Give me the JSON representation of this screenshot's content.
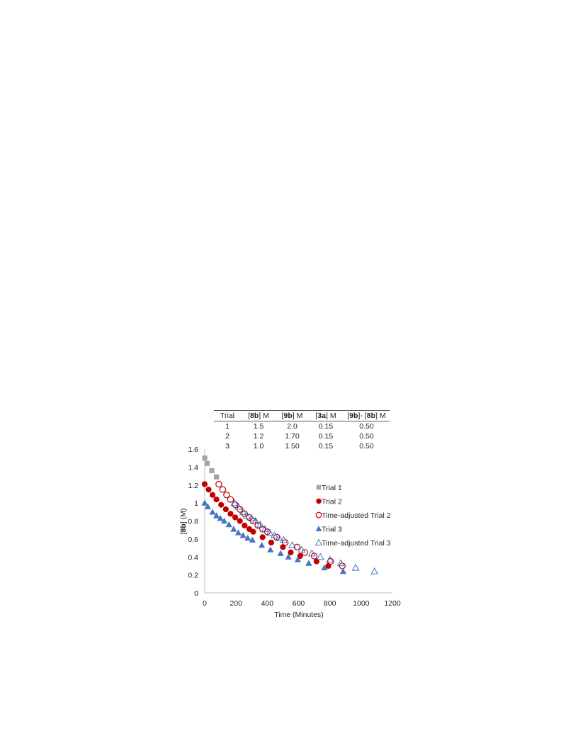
{
  "table": {
    "headers": [
      {
        "pre": "Trial",
        "bold": "",
        "post": ""
      },
      {
        "pre": "[",
        "bold": "8b",
        "post": "] M"
      },
      {
        "pre": "[",
        "bold": "9b",
        "post": "] M"
      },
      {
        "pre": "[",
        "bold": "3a",
        "post": "] M"
      },
      {
        "pre": "[",
        "bold": "9b",
        "post": "]- [",
        "bold2": "8b",
        "post2": "] M"
      }
    ],
    "rows": [
      [
        "1",
        "1.5",
        "2.0",
        "0.15",
        "0.50"
      ],
      [
        "2",
        "1.2",
        "1.70",
        "0.15",
        "0.50"
      ],
      [
        "3",
        "1.0",
        "1.50",
        "0.15",
        "0.50"
      ]
    ]
  },
  "chart_data": {
    "type": "scatter",
    "xlabel": "Time (Minutes)",
    "ylabel_pre": "[",
    "ylabel_bold": "8b",
    "ylabel_post": "] (M)",
    "xlim": [
      0,
      1200
    ],
    "ylim": [
      0,
      1.6
    ],
    "xticks": [
      0,
      200,
      400,
      600,
      800,
      1000,
      1200
    ],
    "yticks": [
      0,
      0.2,
      0.4,
      0.6,
      0.8,
      1,
      1.2,
      1.4,
      1.6
    ],
    "grid": false,
    "legend_position": "right-center",
    "series": [
      {
        "name": "Trial 1",
        "marker": "square-filled",
        "color": "#a6a6a6",
        "x": [
          0,
          15,
          45,
          75
        ],
        "y": [
          1.5,
          1.44,
          1.36,
          1.29
        ]
      },
      {
        "name": "Trial 2",
        "marker": "circle-filled",
        "color": "#c00000",
        "x": [
          0,
          25,
          50,
          75,
          105,
          135,
          165,
          195,
          225,
          255,
          285,
          310,
          370,
          425,
          500,
          550,
          610,
          715,
          790
        ],
        "y": [
          1.21,
          1.15,
          1.09,
          1.04,
          0.98,
          0.93,
          0.88,
          0.84,
          0.8,
          0.75,
          0.71,
          0.68,
          0.62,
          0.56,
          0.51,
          0.45,
          0.41,
          0.35,
          0.3
        ]
      },
      {
        "name": "Time-adjusted Trial 2",
        "marker": "circle-open",
        "color": "#c00000",
        "x": [
          90,
          115,
          140,
          165,
          195,
          225,
          255,
          285,
          310,
          340,
          370,
          400,
          460,
          515,
          590,
          640,
          700,
          805,
          880
        ],
        "y": [
          1.21,
          1.15,
          1.09,
          1.04,
          0.98,
          0.93,
          0.88,
          0.84,
          0.8,
          0.75,
          0.71,
          0.68,
          0.62,
          0.56,
          0.51,
          0.45,
          0.41,
          0.35,
          0.3
        ]
      },
      {
        "name": "Trial 3",
        "marker": "triangle-filled",
        "color": "#4472c4",
        "x": [
          0,
          20,
          50,
          75,
          100,
          125,
          155,
          185,
          215,
          245,
          275,
          305,
          365,
          420,
          485,
          535,
          595,
          665,
          765,
          885
        ],
        "y": [
          1.0,
          0.96,
          0.9,
          0.86,
          0.83,
          0.8,
          0.76,
          0.71,
          0.67,
          0.64,
          0.61,
          0.59,
          0.53,
          0.48,
          0.44,
          0.4,
          0.37,
          0.33,
          0.28,
          0.24
        ]
      },
      {
        "name": "Time-adjusted Trial 3",
        "marker": "triangle-open",
        "color": "#4472c4",
        "x": [
          190,
          215,
          245,
          270,
          300,
          325,
          355,
          385,
          415,
          445,
          475,
          505,
          560,
          620,
          685,
          740,
          800,
          870,
          965,
          1085
        ],
        "y": [
          1.0,
          0.96,
          0.9,
          0.86,
          0.83,
          0.8,
          0.76,
          0.71,
          0.67,
          0.64,
          0.61,
          0.59,
          0.53,
          0.48,
          0.44,
          0.4,
          0.37,
          0.33,
          0.28,
          0.24
        ]
      }
    ]
  }
}
